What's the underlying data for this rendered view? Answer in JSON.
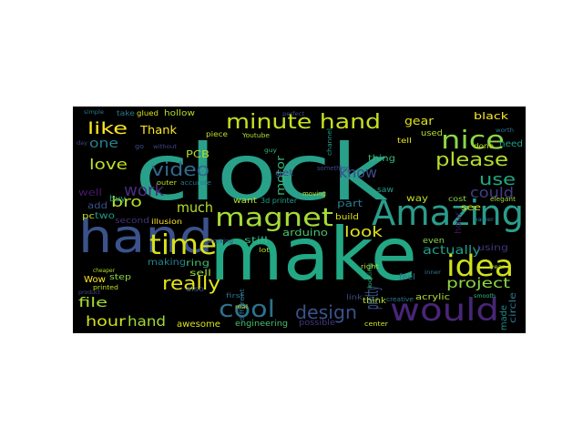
{
  "wordcloud": {
    "background": "#000000",
    "words": [
      {
        "text": "clock",
        "color": "#29a08a"
      },
      {
        "text": "make",
        "color": "#22a884"
      },
      {
        "text": "hand",
        "color": "#3b528b"
      },
      {
        "text": "Amazing",
        "color": "#2a9d8a"
      },
      {
        "text": "would",
        "color": "#482677"
      },
      {
        "text": "magnet",
        "color": "#a5db36"
      },
      {
        "text": "time",
        "color": "#d8e219"
      },
      {
        "text": "idea",
        "color": "#d0e11c"
      },
      {
        "text": "nice",
        "color": "#8bd646"
      },
      {
        "text": "minute hand",
        "color": "#c5e021"
      },
      {
        "text": "cool",
        "color": "#2c728e"
      },
      {
        "text": "design",
        "color": "#3b528b"
      },
      {
        "text": "please",
        "color": "#b5de2b"
      },
      {
        "text": "pretty",
        "color": "#39568c"
      },
      {
        "text": "really",
        "color": "#e3e419"
      },
      {
        "text": "video",
        "color": "#31688e"
      },
      {
        "text": "project",
        "color": "#8bd646"
      },
      {
        "text": "work",
        "color": "#472d7b"
      },
      {
        "text": "like",
        "color": "#fde725"
      },
      {
        "text": "use",
        "color": "#22a884"
      },
      {
        "text": "bro",
        "color": "#b5de2b"
      },
      {
        "text": "love",
        "color": "#c2df23"
      },
      {
        "text": "know",
        "color": "#3e4989"
      },
      {
        "text": "could",
        "color": "#433e85"
      },
      {
        "text": "look",
        "color": "#dde318"
      },
      {
        "text": "much",
        "color": "#b8de29"
      },
      {
        "text": "hour",
        "color": "#d2e21b"
      },
      {
        "text": "hand",
        "color": "#a2da37"
      },
      {
        "text": "actually",
        "color": "#1f9e89"
      },
      {
        "text": "file",
        "color": "#a8db34"
      },
      {
        "text": "one",
        "color": "#277f8e"
      },
      {
        "text": "Thank",
        "color": "#fde725"
      },
      {
        "text": "gear",
        "color": "#dfe318"
      },
      {
        "text": "motor",
        "color": "#35b779"
      },
      {
        "text": "arduino",
        "color": "#4ac16d"
      },
      {
        "text": "part",
        "color": "#2a788e"
      },
      {
        "text": "ring",
        "color": "#3fbc73"
      },
      {
        "text": "sell",
        "color": "#a0da39"
      },
      {
        "text": "awesome",
        "color": "#d8e219"
      },
      {
        "text": "engineering",
        "color": "#4ac16d"
      },
      {
        "text": "see",
        "color": "#d5e21a"
      },
      {
        "text": "thing",
        "color": "#35b779"
      },
      {
        "text": "black",
        "color": "#fde725"
      },
      {
        "text": "need",
        "color": "#1fa188"
      },
      {
        "text": "made",
        "color": "#23898e"
      },
      {
        "text": "circle",
        "color": "#2a788e"
      },
      {
        "text": "PCB",
        "color": "#b5de2b"
      },
      {
        "text": "two",
        "color": "#1f9a8a"
      },
      {
        "text": "step",
        "color": "#8bd646"
      },
      {
        "text": "Wow",
        "color": "#fde725"
      },
      {
        "text": "add",
        "color": "#3b528b"
      },
      {
        "text": "well",
        "color": "#48186a"
      },
      {
        "text": "pc",
        "color": "#c8e020"
      },
      {
        "text": "buy",
        "color": "#22a884"
      },
      {
        "text": "second",
        "color": "#46337e"
      },
      {
        "text": "illusion",
        "color": "#fde725"
      },
      {
        "text": "making",
        "color": "#26828e"
      },
      {
        "text": "also",
        "color": "#3b528b"
      },
      {
        "text": "first",
        "color": "#2c728e"
      },
      {
        "text": "still",
        "color": "#35b779"
      },
      {
        "text": "want",
        "color": "#b5de2b"
      },
      {
        "text": "3d printer",
        "color": "#1f9e89"
      },
      {
        "text": "get",
        "color": "#3e4989"
      },
      {
        "text": "build",
        "color": "#dde318"
      },
      {
        "text": "way",
        "color": "#c2df23"
      },
      {
        "text": "even",
        "color": "#8bd646"
      },
      {
        "text": "hour",
        "color": "#471365"
      },
      {
        "text": "possible",
        "color": "#453781"
      },
      {
        "text": "acrylic",
        "color": "#b5de2b"
      },
      {
        "text": "think",
        "color": "#b8de29"
      },
      {
        "text": "link",
        "color": "#3e4989"
      },
      {
        "text": "creative",
        "color": "#2a788e"
      },
      {
        "text": "center",
        "color": "#d8e219"
      },
      {
        "text": "feel",
        "color": "#2c728e"
      },
      {
        "text": "saw",
        "color": "#1f9e89"
      },
      {
        "text": "cost",
        "color": "#8bd646"
      },
      {
        "text": "used",
        "color": "#b5de2b"
      },
      {
        "text": "done",
        "color": "#c2df23"
      },
      {
        "text": "tell",
        "color": "#e5e419"
      },
      {
        "text": "using",
        "color": "#46337e"
      },
      {
        "text": "elegant",
        "color": "#a0da39"
      },
      {
        "text": "right",
        "color": "#b5de2b"
      },
      {
        "text": "hollow",
        "color": "#b5de2b"
      },
      {
        "text": "piece",
        "color": "#c2df23"
      },
      {
        "text": "take",
        "color": "#2a788e"
      },
      {
        "text": "glued",
        "color": "#d8e219"
      },
      {
        "text": "Youtube",
        "color": "#b5de2b"
      },
      {
        "text": "something",
        "color": "#3e4989"
      },
      {
        "text": "moving",
        "color": "#b8de29"
      },
      {
        "text": "printed",
        "color": "#c2df23"
      },
      {
        "text": "product",
        "color": "#3e4989"
      },
      {
        "text": "simple",
        "color": "#2a788e"
      },
      {
        "text": "day",
        "color": "#3e4989"
      },
      {
        "text": "outer",
        "color": "#c2df23"
      },
      {
        "text": "accurate",
        "color": "#2a788e"
      },
      {
        "text": "channel",
        "color": "#1f9e89"
      },
      {
        "text": "different",
        "color": "#2c728e"
      },
      {
        "text": "looking",
        "color": "#35b779"
      },
      {
        "text": "working",
        "color": "#3e4989"
      },
      {
        "text": "lot",
        "color": "#b5de2b"
      },
      {
        "text": "go",
        "color": "#3e4989"
      },
      {
        "text": "cheaper",
        "color": "#b5de2b"
      },
      {
        "text": "easier",
        "color": "#2a788e"
      },
      {
        "text": "without",
        "color": "#3e4989"
      },
      {
        "text": "smooth",
        "color": "#35b779"
      },
      {
        "text": "year",
        "color": "#b5de2b"
      },
      {
        "text": "inner",
        "color": "#2a788e"
      },
      {
        "text": "perfect",
        "color": "#3e4989"
      },
      {
        "text": "real",
        "color": "#c2df23"
      },
      {
        "text": "guy",
        "color": "#35b779"
      },
      {
        "text": "worth",
        "color": "#2a788e"
      }
    ]
  }
}
